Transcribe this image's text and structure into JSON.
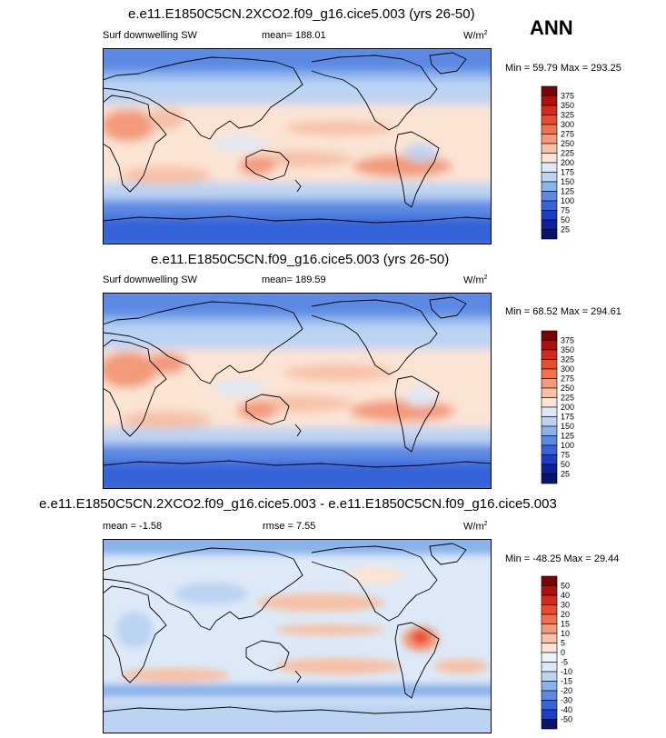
{
  "season": "ANN",
  "chart_data": [
    {
      "type": "heatmap",
      "title": "e.e11.E1850C5CN.2XCO2.f09_g16.cice5.003 (yrs 26-50)",
      "variable": "Surf downwelling SW",
      "stat_text": "mean= 188.01",
      "mean": 188.01,
      "units": "W/m",
      "units_exp": "2",
      "range_text": "Min =  59.79 Max = 293.25",
      "min": 59.79,
      "max": 293.25,
      "levels": [
        "375",
        "350",
        "325",
        "300",
        "275",
        "250",
        "225",
        "200",
        "175",
        "150",
        "125",
        "100",
        "75",
        "50",
        "25"
      ],
      "colors": [
        "#7a0403",
        "#b0100b",
        "#d42a1c",
        "#e84d2e",
        "#f1714f",
        "#f39a7a",
        "#f6c1a6",
        "#fbe4d4",
        "#dde9f7",
        "#bcd3f2",
        "#8ab2eb",
        "#5b89e3",
        "#3564d8",
        "#1c3ec4",
        "#0c2199",
        "#061469"
      ]
    },
    {
      "type": "heatmap",
      "title": "e.e11.E1850C5CN.f09_g16.cice5.003 (yrs 26-50)",
      "variable": "Surf downwelling SW",
      "stat_text": "mean= 189.59",
      "mean": 189.59,
      "units": "W/m",
      "units_exp": "2",
      "range_text": "Min =  68.52 Max = 294.61",
      "min": 68.52,
      "max": 294.61,
      "levels": [
        "375",
        "350",
        "325",
        "300",
        "275",
        "250",
        "225",
        "200",
        "175",
        "150",
        "125",
        "100",
        "75",
        "50",
        "25"
      ],
      "colors": [
        "#7a0403",
        "#b0100b",
        "#d42a1c",
        "#e84d2e",
        "#f1714f",
        "#f39a7a",
        "#f6c1a6",
        "#fbe4d4",
        "#dde9f7",
        "#bcd3f2",
        "#8ab2eb",
        "#5b89e3",
        "#3564d8",
        "#1c3ec4",
        "#0c2199",
        "#061469"
      ]
    },
    {
      "type": "heatmap",
      "title": "e.e11.E1850C5CN.2XCO2.f09_g16.cice5.003 - e.e11.E1850C5CN.f09_g16.cice5.003",
      "stat_text": "mean =  -1.58",
      "mean": -1.58,
      "rmse_text": "rmse =   7.55",
      "rmse": 7.55,
      "units": "W/m",
      "units_exp": "2",
      "range_text": "Min = -48.25 Max =  29.44",
      "min": -48.25,
      "max": 29.44,
      "levels": [
        "50",
        "40",
        "30",
        "20",
        "15",
        "10",
        "5",
        "0",
        "-5",
        "-10",
        "-15",
        "-20",
        "-30",
        "-40",
        "-50"
      ],
      "colors": [
        "#7a0403",
        "#b0100b",
        "#d42a1c",
        "#e84d2e",
        "#f1714f",
        "#f39a7a",
        "#f6c1a6",
        "#fbe4d4",
        "#eef2fb",
        "#dde9f7",
        "#bcd3f2",
        "#8ab2eb",
        "#5b89e3",
        "#3564d8",
        "#1c3ec4",
        "#061469"
      ]
    }
  ]
}
